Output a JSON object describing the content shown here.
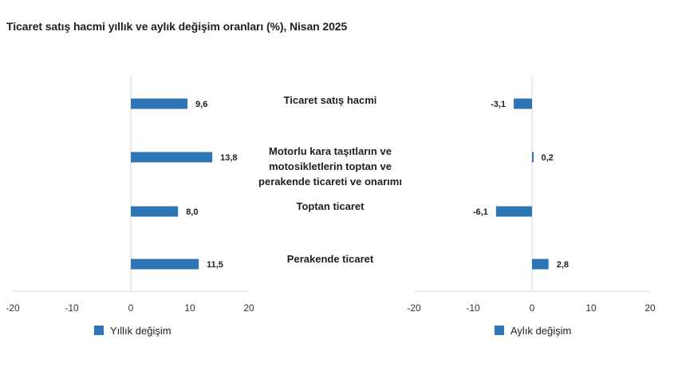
{
  "title": "Ticaret satış hacmi yıllık ve aylık değişim oranları (%), Nisan 2025",
  "colors": {
    "bar": "#2e75b6",
    "axis": "#d9d9d9",
    "text": "#1f1f1f"
  },
  "chart_data": [
    {
      "type": "bar",
      "orientation": "horizontal",
      "categories": [
        "Ticaret satış hacmi",
        "Motorlu kara taşıtların ve motosikletlerin toptan ve perakende ticareti ve onarımı",
        "Toptan ticaret",
        "Perakende ticaret"
      ],
      "series": [
        {
          "name": "Yıllık değişim",
          "values": [
            9.6,
            13.8,
            8.0,
            11.5
          ]
        }
      ],
      "value_labels": [
        "9,6",
        "13,8",
        "8,0",
        "11,5"
      ],
      "xlim": [
        -20,
        20
      ],
      "ticks": [
        -20,
        -10,
        0,
        10,
        20
      ],
      "tick_labels": [
        "-20",
        "-10",
        "0",
        "10",
        "20"
      ],
      "legend": "bottom-left",
      "grid": false
    },
    {
      "type": "bar",
      "orientation": "horizontal",
      "categories": [
        "Ticaret satış hacmi",
        "Motorlu kara taşıtların ve motosikletlerin toptan ve perakende ticareti ve onarımı",
        "Toptan ticaret",
        "Perakende ticaret"
      ],
      "series": [
        {
          "name": "Aylık değişim",
          "values": [
            -3.1,
            0.2,
            -6.1,
            2.8
          ]
        }
      ],
      "value_labels": [
        "-3,1",
        "0,2",
        "-6,1",
        "2,8"
      ],
      "xlim": [
        -20,
        20
      ],
      "ticks": [
        -20,
        -10,
        0,
        10,
        20
      ],
      "tick_labels": [
        "-20",
        "-10",
        "0",
        "10",
        "20"
      ],
      "legend": "bottom-left",
      "grid": false
    }
  ],
  "category_label_lines": [
    [
      "Ticaret satış hacmi"
    ],
    [
      "Motorlu kara taşıtların ve",
      "motosikletlerin toptan ve",
      "perakende ticareti ve onarımı"
    ],
    [
      "Toptan ticaret"
    ],
    [
      "Perakende ticaret"
    ]
  ]
}
